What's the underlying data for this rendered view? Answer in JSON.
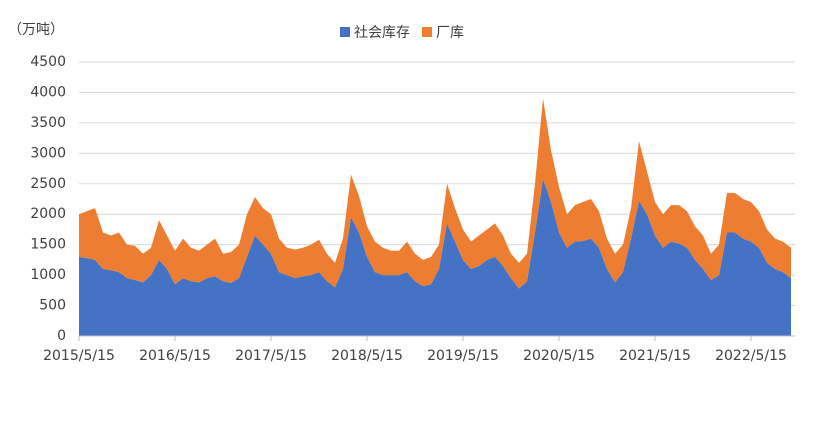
{
  "chart_data": {
    "type": "stacked_area",
    "y_label": "（万吨）",
    "categories": [
      "2015/5/15",
      null,
      null,
      null,
      null,
      null,
      null,
      null,
      null,
      null,
      null,
      null,
      "2016/5/15",
      null,
      null,
      null,
      null,
      null,
      null,
      null,
      null,
      null,
      null,
      null,
      "2017/5/15",
      null,
      null,
      null,
      null,
      null,
      null,
      null,
      null,
      null,
      null,
      null,
      "2018/5/15",
      null,
      null,
      null,
      null,
      null,
      null,
      null,
      null,
      null,
      null,
      null,
      "2019/5/15",
      null,
      null,
      null,
      null,
      null,
      null,
      null,
      null,
      null,
      null,
      null,
      "2020/5/15",
      null,
      null,
      null,
      null,
      null,
      null,
      null,
      null,
      null,
      null,
      null,
      "2021/5/15",
      null,
      null,
      null,
      null,
      null,
      null,
      null,
      null,
      null,
      null,
      null,
      "2022/5/15",
      null,
      null,
      null,
      null,
      null
    ],
    "series": [
      {
        "name": "社会库存",
        "color": "#4472c4",
        "values": [
          1300,
          1280,
          1250,
          1100,
          1080,
          1050,
          950,
          920,
          880,
          1000,
          1250,
          1100,
          850,
          950,
          900,
          880,
          950,
          980,
          900,
          870,
          950,
          1300,
          1650,
          1500,
          1350,
          1050,
          1000,
          950,
          980,
          1000,
          1050,
          900,
          800,
          1100,
          1950,
          1700,
          1300,
          1050,
          1000,
          1000,
          1000,
          1050,
          900,
          820,
          850,
          1100,
          1850,
          1550,
          1250,
          1100,
          1150,
          1250,
          1300,
          1150,
          950,
          780,
          900,
          1700,
          2580,
          2200,
          1700,
          1450,
          1550,
          1560,
          1600,
          1450,
          1100,
          880,
          1050,
          1600,
          2220,
          2000,
          1650,
          1450,
          1550,
          1520,
          1450,
          1250,
          1100,
          920,
          1000,
          1700,
          1700,
          1600,
          1550,
          1450,
          1200,
          1100,
          1050,
          950
        ]
      },
      {
        "name": "厂库",
        "color": "#ed7d31",
        "values": [
          700,
          770,
          850,
          600,
          570,
          650,
          550,
          560,
          470,
          450,
          650,
          550,
          550,
          650,
          550,
          520,
          550,
          620,
          450,
          510,
          550,
          700,
          630,
          600,
          650,
          550,
          450,
          470,
          470,
          500,
          530,
          450,
          400,
          500,
          700,
          600,
          500,
          500,
          450,
          400,
          400,
          500,
          450,
          430,
          450,
          400,
          650,
          550,
          500,
          450,
          500,
          500,
          550,
          500,
          400,
          420,
          450,
          800,
          1320,
          850,
          750,
          550,
          600,
          640,
          650,
          600,
          500,
          470,
          450,
          500,
          980,
          700,
          550,
          550,
          600,
          630,
          600,
          550,
          550,
          430,
          500,
          650,
          650,
          650,
          650,
          600,
          550,
          500,
          500,
          500
        ]
      }
    ],
    "ylim": [
      0,
      4500
    ],
    "yticks": [
      0,
      500,
      1000,
      1500,
      2000,
      2500,
      3000,
      3500,
      4000,
      4500
    ],
    "grid": true
  }
}
